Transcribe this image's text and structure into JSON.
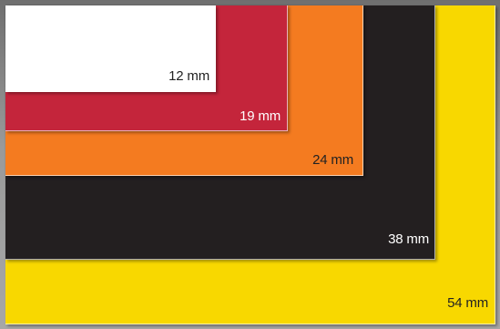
{
  "tapes": [
    {
      "label": "54 mm",
      "color": "#f8d800",
      "text_color": "#222222"
    },
    {
      "label": "38 mm",
      "color": "#231f20",
      "text_color": "#ffffff"
    },
    {
      "label": "24 mm",
      "color": "#f47b20",
      "text_color": "#222222"
    },
    {
      "label": "19 mm",
      "color": "#c4253b",
      "text_color": "#ffffff"
    },
    {
      "label": "12 mm",
      "color": "#ffffff",
      "text_color": "#222222"
    }
  ]
}
